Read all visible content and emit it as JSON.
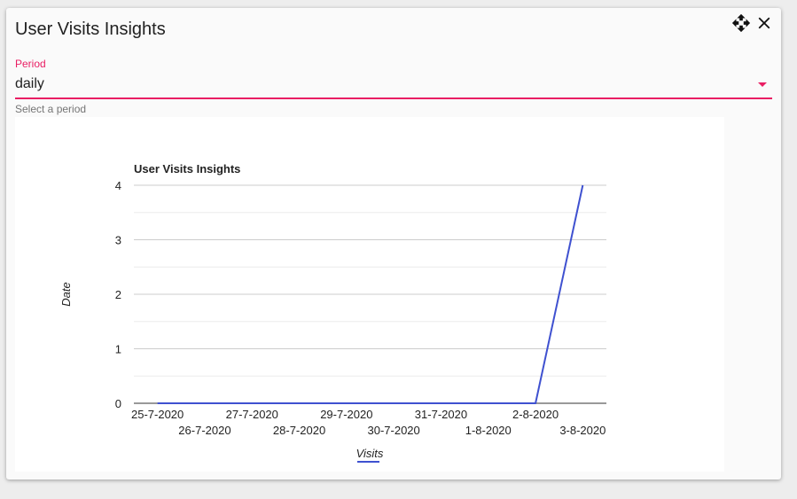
{
  "card": {
    "title": "User Visits Insights",
    "move_icon": "move-icon",
    "close_icon": "close-icon"
  },
  "period_field": {
    "label": "Period",
    "value": "daily",
    "hint": "Select a period",
    "accent_color": "#e91e63"
  },
  "chart_data": {
    "type": "line",
    "title": "User Visits Insights",
    "xlabel": "Visits",
    "ylabel": "Date",
    "categories": [
      "25-7-2020",
      "26-7-2020",
      "27-7-2020",
      "28-7-2020",
      "29-7-2020",
      "30-7-2020",
      "31-7-2020",
      "1-8-2020",
      "2-8-2020",
      "3-8-2020"
    ],
    "series": [
      {
        "values": [
          0,
          0,
          0,
          0,
          0,
          0,
          0,
          0,
          0,
          4
        ],
        "color": "#3f51d0"
      }
    ],
    "yticks": [
      "0",
      "1",
      "2",
      "3",
      "4"
    ],
    "ylim": [
      0,
      4
    ],
    "grid": true,
    "legend": "bottom"
  }
}
